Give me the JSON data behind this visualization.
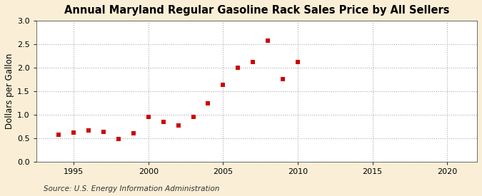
{
  "title": "Annual Maryland Regular Gasoline Rack Sales Price by All Sellers",
  "ylabel": "Dollars per Gallon",
  "source": "Source: U.S. Energy Information Administration",
  "figure_bg_color": "#faefd6",
  "plot_bg_color": "#ffffff",
  "marker_color": "#cc0000",
  "years": [
    1994,
    1995,
    1996,
    1997,
    1998,
    1999,
    2000,
    2001,
    2002,
    2003,
    2004,
    2005,
    2006,
    2007,
    2008,
    2009,
    2010
  ],
  "values": [
    0.58,
    0.62,
    0.66,
    0.63,
    0.49,
    0.61,
    0.96,
    0.84,
    0.77,
    0.96,
    1.24,
    1.64,
    1.99,
    2.12,
    2.57,
    1.75,
    2.12
  ],
  "xlim": [
    1992.5,
    2022
  ],
  "ylim": [
    0.0,
    3.0
  ],
  "xticks": [
    1995,
    2000,
    2005,
    2010,
    2015,
    2020
  ],
  "yticks": [
    0.0,
    0.5,
    1.0,
    1.5,
    2.0,
    2.5,
    3.0
  ],
  "grid_color": "#aaaaaa",
  "title_fontsize": 10.5,
  "label_fontsize": 8.5,
  "tick_fontsize": 8,
  "source_fontsize": 7.5,
  "marker_size": 14
}
